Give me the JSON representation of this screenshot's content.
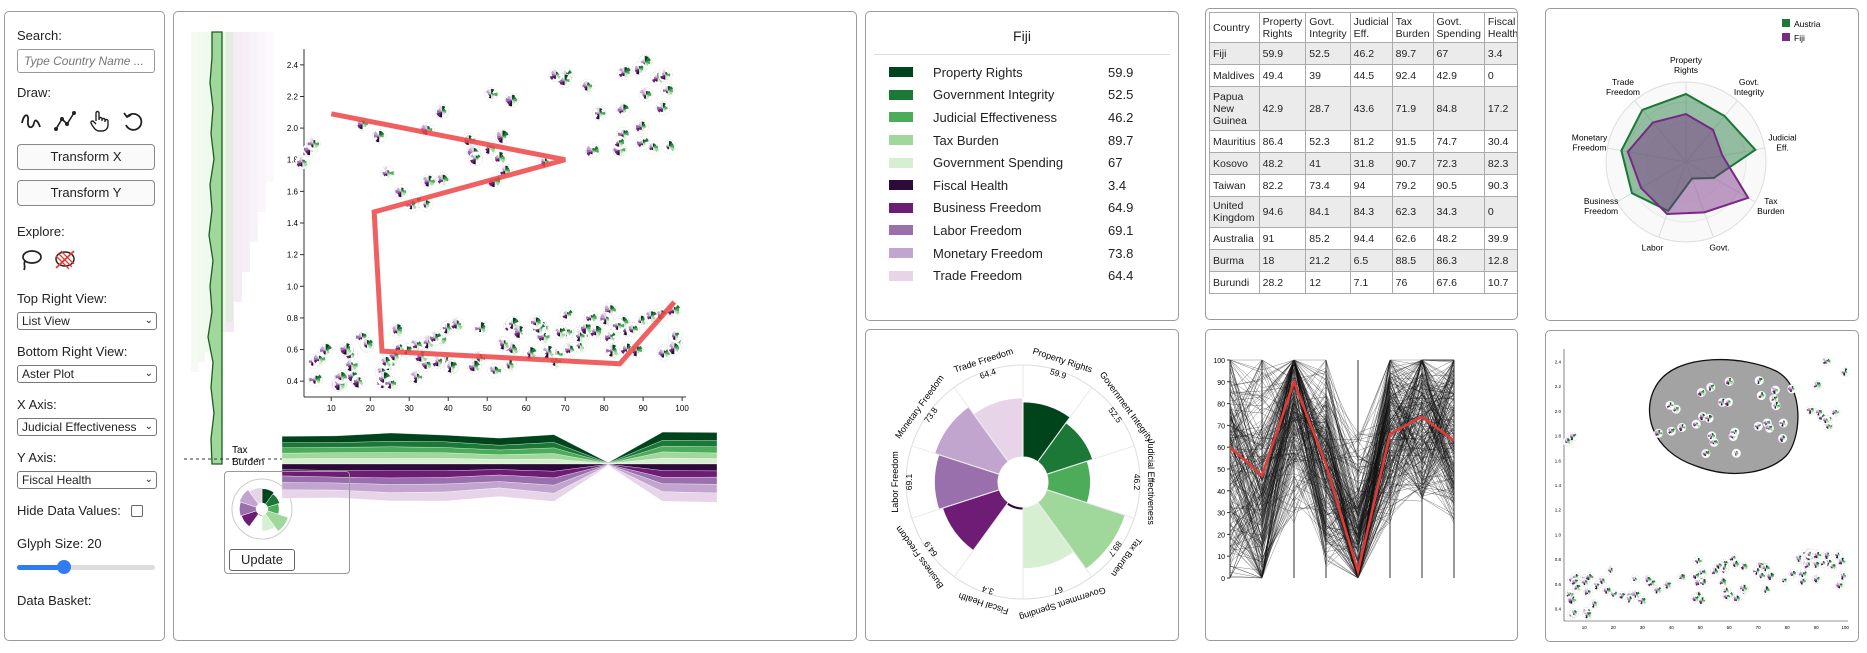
{
  "control": {
    "search_label": "Search:",
    "search_placeholder": "Type Country Name ...",
    "draw_label": "Draw:",
    "draw_tools": [
      "squiggle-icon",
      "polyline-icon",
      "hand-pointer-icon",
      "undo-icon"
    ],
    "transform_x": "Transform X",
    "transform_y": "Transform Y",
    "explore_label": "Explore:",
    "explore_tools": [
      "lasso-icon",
      "lasso-disabled-icon"
    ],
    "top_right_label": "Top Right View:",
    "top_right_value": "List View",
    "bottom_right_label": "Bottom Right View:",
    "bottom_right_value": "Aster Plot",
    "x_axis_label": "X Axis:",
    "x_axis_value": "Judicial Effectiveness",
    "y_axis_label": "Y Axis:",
    "y_axis_value": "Fiscal Health",
    "hide_values_label": "Hide Data Values:",
    "glyph_size_label": "Glyph Size: 20",
    "glyph_size_value": 20,
    "glyph_size_fraction": 0.34,
    "data_basket_label": "Data Basket:",
    "tax_burden_label": "Tax",
    "tax_burden_label2": "Burden",
    "update_button": "Update"
  },
  "colors": {
    "greens": [
      "#00441b",
      "#1b7837",
      "#4dac5a",
      "#9fd89a",
      "#d6efd0"
    ],
    "purples": [
      "#2d0a3a",
      "#6e1c76",
      "#9970ab",
      "#c2a5cf",
      "#e7d4e8"
    ],
    "path": "#ef4444"
  },
  "main_plot": {
    "y_ticks": [
      "0.4",
      "0.6",
      "0.8",
      "1.0",
      "1.2",
      "1.4",
      "1.6",
      "1.8",
      "2.0",
      "2.2",
      "2.4"
    ],
    "x_ticks": [
      "10",
      "20",
      "30",
      "40",
      "50",
      "60",
      "70",
      "80",
      "90",
      "100"
    ],
    "x_range": [
      3,
      101
    ],
    "y_range": [
      0.3,
      2.5
    ],
    "path_points": [
      [
        10,
        2.09
      ],
      [
        70,
        1.8
      ],
      [
        21,
        1.47
      ],
      [
        23,
        0.59
      ],
      [
        84,
        0.51
      ],
      [
        98,
        0.9
      ]
    ]
  },
  "legend": {
    "title": "Fiji",
    "items": [
      {
        "name": "Property Rights",
        "value": "59.9"
      },
      {
        "name": "Government Integrity",
        "value": "52.5"
      },
      {
        "name": "Judicial Effectiveness",
        "value": "46.2"
      },
      {
        "name": "Tax Burden",
        "value": "89.7"
      },
      {
        "name": "Government Spending",
        "value": "67"
      },
      {
        "name": "Fiscal Health",
        "value": "3.4"
      },
      {
        "name": "Business Freedom",
        "value": "64.9"
      },
      {
        "name": "Labor Freedom",
        "value": "69.1"
      },
      {
        "name": "Monetary Freedom",
        "value": "73.8"
      },
      {
        "name": "Trade Freedom",
        "value": "64.4"
      }
    ]
  },
  "table": {
    "headers": [
      "Country",
      "Property Rights",
      "Govt. Integrity",
      "Judicial Eff.",
      "Tax Burden",
      "Govt. Spending",
      "Fiscal Health"
    ],
    "rows": [
      [
        "Fiji",
        "59.9",
        "52.5",
        "46.2",
        "89.7",
        "67",
        "3.4"
      ],
      [
        "Maldives",
        "49.4",
        "39",
        "44.5",
        "92.4",
        "42.9",
        "0"
      ],
      [
        "Papua New Guinea",
        "42.9",
        "28.7",
        "43.6",
        "71.9",
        "84.8",
        "17.2"
      ],
      [
        "Mauritius",
        "86.4",
        "52.3",
        "81.2",
        "91.5",
        "74.7",
        "30.4"
      ],
      [
        "Kosovo",
        "48.2",
        "41",
        "31.8",
        "90.7",
        "72.3",
        "82.3"
      ],
      [
        "Taiwan",
        "82.2",
        "73.4",
        "94",
        "79.2",
        "90.5",
        "90.3"
      ],
      [
        "United Kingdom",
        "94.6",
        "84.1",
        "84.3",
        "62.3",
        "34.3",
        "0"
      ],
      [
        "Australia",
        "91",
        "85.2",
        "94.4",
        "62.6",
        "48.2",
        "39.9"
      ],
      [
        "Burma",
        "18",
        "21.2",
        "6.5",
        "88.5",
        "86.3",
        "12.8"
      ],
      [
        "Burundi",
        "28.2",
        "12",
        "7.1",
        "76",
        "67.6",
        "10.7"
      ]
    ]
  },
  "aster": {
    "labels": [
      "Property Rights",
      "Government Integrity",
      "Judicial Effectiveness",
      "Tax Burden",
      "Government Spending",
      "Fiscal Health",
      "Business Freedom",
      "Labor Freedom",
      "Monetary Freedom",
      "Trade Freedom"
    ],
    "values": [
      59.9,
      52.5,
      46.2,
      89.7,
      67,
      3.4,
      64.9,
      69.1,
      73.8,
      64.4
    ],
    "value_labels": [
      "59.9",
      "52.5",
      "46.2",
      "89.7",
      "67",
      "3.4",
      "64.9",
      "69.1",
      "73.8",
      "64.4"
    ]
  },
  "pcp": {
    "y_ticks": [
      "0",
      "10",
      "20",
      "30",
      "40",
      "50",
      "60",
      "70",
      "80",
      "90",
      "100"
    ],
    "highlight": [
      60,
      47,
      90,
      52,
      3,
      66,
      74,
      63
    ]
  },
  "radar": {
    "legend": [
      {
        "name": "Austria",
        "color": "#1b7837"
      },
      {
        "name": "Fiji",
        "color": "#762a83"
      }
    ],
    "axes": [
      "Property Rights",
      "Govt. Integrity",
      "Judicial Eff.",
      "Tax Burden",
      "Govt.",
      "Labor",
      "Business Freedom",
      "Monetary Freedom",
      "Trade Freedom"
    ],
    "austria": [
      85,
      75,
      88,
      40,
      22,
      65,
      78,
      82,
      85
    ],
    "fiji": [
      59.9,
      52.5,
      46.2,
      89.7,
      67,
      69.1,
      64.9,
      73.8,
      64.4
    ]
  },
  "scatter2": {
    "x_ticks": [
      "10",
      "20",
      "30",
      "40",
      "50",
      "60",
      "70",
      "80",
      "90",
      "100"
    ],
    "y_ticks": [
      "0.4",
      "0.6",
      "0.8",
      "1.0",
      "1.2",
      "1.4",
      "1.6",
      "1.8",
      "2.0",
      "2.2",
      "2.4"
    ]
  }
}
